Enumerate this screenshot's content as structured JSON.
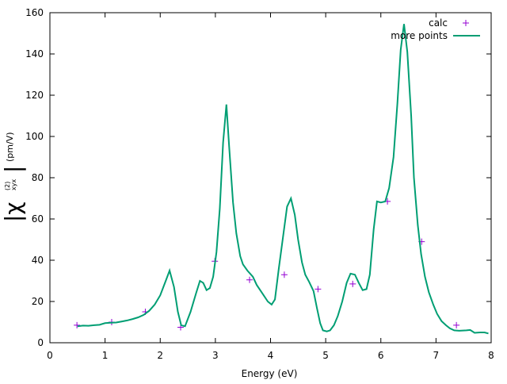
{
  "chart_data": {
    "type": "line",
    "xlabel": "Energy (eV)",
    "ylabel": {
      "open": "|χ",
      "subscript": "xyx",
      "superscript": "(2)",
      "close": "|",
      "unit": "(pm/V)"
    },
    "xlim": [
      0,
      8
    ],
    "xticks": [
      0,
      1,
      2,
      3,
      4,
      5,
      6,
      7,
      8
    ],
    "ylim": [
      0,
      160
    ],
    "yticks": [
      0,
      20,
      40,
      60,
      80,
      100,
      120,
      140,
      160
    ],
    "legend": "top-right",
    "series": [
      {
        "name": "calc",
        "style": "points",
        "color": "#9400d3",
        "x": [
          0.49,
          1.12,
          1.73,
          2.37,
          2.99,
          3.62,
          4.25,
          4.86,
          5.49,
          6.12,
          6.74,
          7.37
        ],
        "y": [
          8.5,
          10,
          15,
          7.5,
          39.5,
          30.5,
          33,
          26,
          28.5,
          68.5,
          49,
          8.5
        ]
      },
      {
        "name": "more points",
        "style": "lines",
        "color": "#009e73",
        "x": [
          0.5,
          0.6,
          0.7,
          0.8,
          0.9,
          1.0,
          1.1,
          1.2,
          1.3,
          1.4,
          1.5,
          1.6,
          1.7,
          1.8,
          1.9,
          2.0,
          2.1,
          2.17,
          2.25,
          2.32,
          2.38,
          2.45,
          2.55,
          2.65,
          2.72,
          2.78,
          2.84,
          2.9,
          2.96,
          3.02,
          3.08,
          3.14,
          3.2,
          3.25,
          3.32,
          3.38,
          3.45,
          3.5,
          3.58,
          3.68,
          3.75,
          3.85,
          3.95,
          4.02,
          4.08,
          4.15,
          4.22,
          4.3,
          4.37,
          4.44,
          4.5,
          4.57,
          4.63,
          4.7,
          4.78,
          4.84,
          4.9,
          4.95,
          5.02,
          5.08,
          5.15,
          5.22,
          5.3,
          5.38,
          5.45,
          5.53,
          5.6,
          5.67,
          5.74,
          5.8,
          5.87,
          5.93,
          6.0,
          6.08,
          6.15,
          6.23,
          6.3,
          6.36,
          6.42,
          6.48,
          6.55,
          6.6,
          6.67,
          6.73,
          6.8,
          6.87,
          6.95,
          7.02,
          7.1,
          7.18,
          7.25,
          7.33,
          7.42,
          7.55,
          7.62,
          7.7,
          7.8,
          7.88,
          7.95
        ],
        "y": [
          8,
          8.3,
          8.2,
          8.5,
          8.7,
          9.5,
          9.7,
          9.8,
          10.3,
          10.8,
          11.5,
          12.3,
          13.5,
          15.5,
          18.5,
          23,
          30,
          35,
          27,
          15,
          8.5,
          8,
          15,
          24,
          30,
          29,
          25.5,
          26.5,
          32,
          44,
          65,
          97,
          115.5,
          95,
          68,
          53,
          42,
          38,
          35,
          32,
          28,
          24,
          20,
          18.5,
          21,
          36,
          50,
          66,
          70,
          62,
          50,
          39,
          33,
          29.5,
          25,
          17,
          9.5,
          6,
          5.5,
          6,
          8.5,
          13,
          20,
          29,
          33.5,
          33,
          29,
          25.5,
          26,
          33,
          55,
          68.5,
          68,
          68.5,
          75,
          90,
          116,
          142,
          154.5,
          141,
          110,
          80,
          57,
          43,
          32,
          24.5,
          18.5,
          14,
          10.5,
          8.5,
          7,
          6,
          5.8,
          6,
          6.2,
          4.8,
          5,
          5,
          4.5
        ]
      }
    ]
  }
}
